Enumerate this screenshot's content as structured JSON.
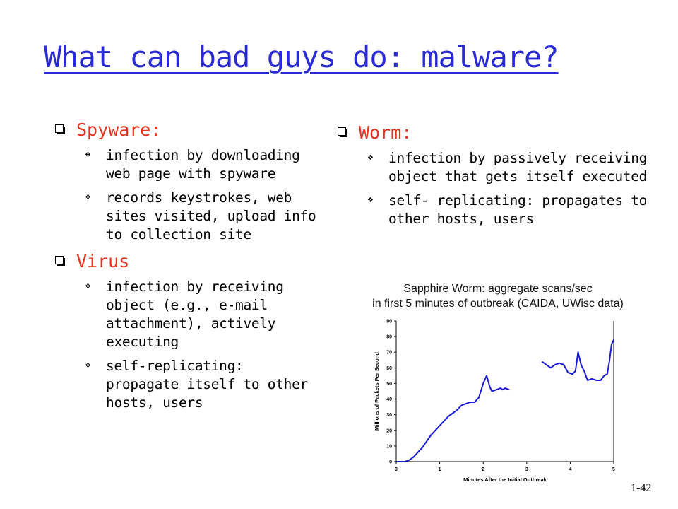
{
  "title": "What can bad guys do: malware?",
  "left": [
    {
      "heading": "Spyware:",
      "items": [
        "infection by downloading web page with spyware",
        "records keystrokes, web sites visited, upload info to collection site"
      ]
    },
    {
      "heading": "Virus",
      "items": [
        "infection by receiving object (e.g., e-mail attachment), actively executing",
        "self-replicating: propagate itself to other hosts, users"
      ]
    }
  ],
  "right": [
    {
      "heading": "Worm:",
      "items": [
        "infection by passively receiving object that gets itself executed",
        "self- replicating: propagates to other hosts, users"
      ]
    }
  ],
  "chart_caption": {
    "line1": "Sapphire Worm: aggregate scans/sec",
    "line2": "in first 5 minutes of outbreak (CAIDA, UWisc data)"
  },
  "chart_data": {
    "type": "line",
    "xlabel": "Minutes After the Initial Outbreak",
    "ylabel": "Millions of Packets Per Second",
    "xlim": [
      0,
      5
    ],
    "ylim": [
      0,
      90
    ],
    "xticks": [
      "0",
      "1",
      "2",
      "3",
      "4",
      "5"
    ],
    "yticks": [
      "0",
      "10",
      "20",
      "30",
      "40",
      "50",
      "60",
      "70",
      "80",
      "90"
    ],
    "color": "#1a1adb",
    "grid": false,
    "series": [
      {
        "segments": [
          [
            [
              0,
              0
            ],
            [
              0.1,
              0
            ],
            [
              0.2,
              0
            ],
            [
              0.3,
              1
            ],
            [
              0.4,
              3
            ],
            [
              0.5,
              6
            ],
            [
              0.6,
              9
            ],
            [
              0.7,
              13
            ],
            [
              0.8,
              17
            ],
            [
              0.9,
              20
            ],
            [
              1.0,
              23
            ],
            [
              1.1,
              26
            ],
            [
              1.2,
              29
            ],
            [
              1.3,
              31
            ],
            [
              1.4,
              33
            ],
            [
              1.5,
              36
            ],
            [
              1.6,
              37
            ],
            [
              1.7,
              38
            ],
            [
              1.8,
              38
            ],
            [
              1.9,
              41
            ],
            [
              2.0,
              50
            ],
            [
              2.08,
              55
            ],
            [
              2.15,
              48
            ],
            [
              2.2,
              45
            ],
            [
              2.3,
              46
            ],
            [
              2.4,
              47
            ],
            [
              2.45,
              46
            ],
            [
              2.5,
              47
            ],
            [
              2.6,
              46
            ]
          ],
          [
            [
              3.35,
              64
            ],
            [
              3.45,
              62
            ],
            [
              3.55,
              60
            ],
            [
              3.65,
              62
            ],
            [
              3.75,
              63
            ],
            [
              3.85,
              62
            ],
            [
              3.95,
              57
            ],
            [
              4.05,
              56
            ],
            [
              4.12,
              58
            ],
            [
              4.18,
              70
            ],
            [
              4.25,
              62
            ],
            [
              4.32,
              58
            ],
            [
              4.4,
              52
            ],
            [
              4.5,
              53
            ],
            [
              4.6,
              52
            ],
            [
              4.7,
              52
            ],
            [
              4.78,
              55
            ],
            [
              4.85,
              56
            ],
            [
              4.9,
              64
            ],
            [
              4.95,
              75
            ],
            [
              5.0,
              78
            ]
          ]
        ]
      }
    ]
  },
  "slide_number": "1-42"
}
